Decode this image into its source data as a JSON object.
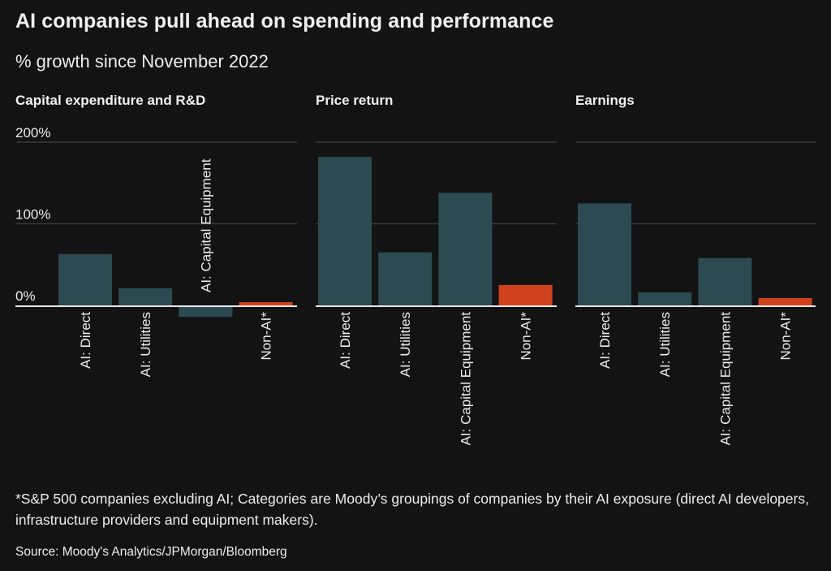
{
  "title": "AI companies pull ahead on spending and performance",
  "subtitle": "% growth since November 2022",
  "footnote": "*S&P 500 companies excluding AI; Categories are Moody’s groupings of companies by their AI exposure (direct AI developers, infrastructure providers and equipment makers).",
  "source": "Source: Moody's Analytics/JPMorgan/Bloomberg",
  "colors": {
    "background": "#131313",
    "ai_bar": "#2c4a52",
    "non_ai_bar": "#d0411e",
    "gridline": "#3a3a3a",
    "baseline": "#e8e8e8",
    "text": "#ededed"
  },
  "chart_data": [
    {
      "type": "bar",
      "title": "Capital expenditure and R&D",
      "categories": [
        "AI: Direct",
        "AI: Utilities",
        "AI: Capital Equipment",
        "Non-AI*"
      ],
      "values": [
        63,
        21,
        -14,
        4
      ],
      "highlight": [
        false,
        false,
        false,
        true
      ],
      "ylim": [
        -25,
        200
      ],
      "yticks": [
        0,
        100,
        200
      ],
      "ytick_labels": [
        "0%",
        "100%",
        "200%"
      ],
      "grid": true,
      "xlabel": "",
      "ylabel": ""
    },
    {
      "type": "bar",
      "title": "Price return",
      "categories": [
        "AI: Direct",
        "AI: Utilities",
        "AI: Capital Equipment",
        "Non-AI*"
      ],
      "values": [
        182,
        65,
        138,
        25
      ],
      "highlight": [
        false,
        false,
        false,
        true
      ],
      "ylim": [
        -25,
        200
      ],
      "yticks": [
        0,
        100,
        200
      ],
      "grid": true,
      "xlabel": "",
      "ylabel": ""
    },
    {
      "type": "bar",
      "title": "Earnings",
      "categories": [
        "AI: Direct",
        "AI: Utilities",
        "AI: Capital Equipment",
        "Non-AI*"
      ],
      "values": [
        125,
        16,
        58,
        9
      ],
      "highlight": [
        false,
        false,
        false,
        true
      ],
      "ylim": [
        -25,
        200
      ],
      "yticks": [
        0,
        100,
        200
      ],
      "grid": true,
      "xlabel": "",
      "ylabel": ""
    }
  ]
}
